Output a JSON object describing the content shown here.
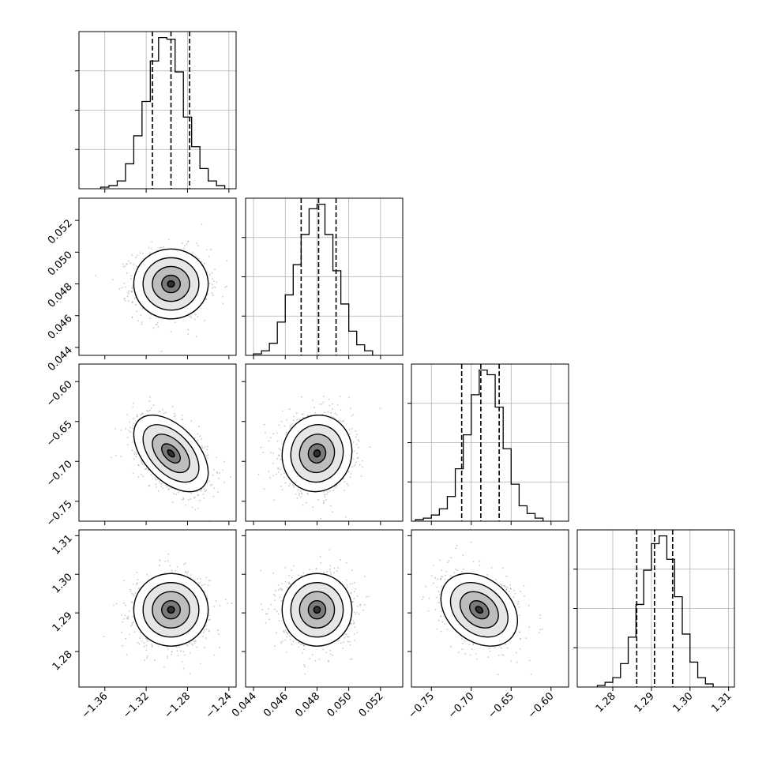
{
  "figure": {
    "colors": {
      "frame": "#000000",
      "grid": "#b0b0b0",
      "scatter": "#9a9a9a",
      "contour": "#000000"
    }
  },
  "chart_data": {
    "type": "corner",
    "grid": true,
    "quantiles": [
      0.16,
      0.5,
      0.84
    ],
    "parameters": [
      {
        "id": "p0",
        "range": [
          -1.385,
          -1.233
        ],
        "ticks": [
          -1.36,
          -1.32,
          -1.28,
          -1.24
        ],
        "tick_labels": [
          "−1.36",
          "−1.32",
          "−1.28",
          "−1.24"
        ],
        "quantile_values": [
          -1.314,
          -1.296,
          -1.278
        ],
        "hist_edges": [
          -1.364,
          -1.356,
          -1.348,
          -1.34,
          -1.332,
          -1.324,
          -1.316,
          -1.308,
          -1.3,
          -1.292,
          -1.284,
          -1.276,
          -1.268,
          -1.26,
          -1.252,
          -1.244
        ],
        "hist_counts": [
          0.01,
          0.02,
          0.05,
          0.16,
          0.34,
          0.56,
          0.82,
          0.97,
          0.96,
          0.75,
          0.46,
          0.27,
          0.13,
          0.05,
          0.02
        ]
      },
      {
        "id": "p1",
        "range": [
          0.0435,
          0.0534
        ],
        "ticks": [
          0.044,
          0.046,
          0.048,
          0.05,
          0.052
        ],
        "tick_labels": [
          "0.044",
          "0.046",
          "0.048",
          "0.050",
          "0.052"
        ],
        "quantile_values": [
          0.047,
          0.0481,
          0.0492
        ],
        "hist_edges": [
          0.044,
          0.0445,
          0.045,
          0.0455,
          0.046,
          0.0465,
          0.047,
          0.0475,
          0.048,
          0.0485,
          0.049,
          0.0495,
          0.05,
          0.0505,
          0.051,
          0.0515
        ],
        "hist_counts": [
          0.01,
          0.03,
          0.08,
          0.22,
          0.4,
          0.6,
          0.8,
          0.97,
          1.0,
          0.8,
          0.56,
          0.34,
          0.16,
          0.07,
          0.03
        ]
      },
      {
        "id": "p2",
        "range": [
          -0.775,
          -0.578
        ],
        "ticks": [
          -0.75,
          -0.7,
          -0.65,
          -0.6
        ],
        "tick_labels": [
          "−0.75",
          "−0.70",
          "−0.65",
          "−0.60"
        ],
        "quantile_values": [
          -0.712,
          -0.688,
          -0.665
        ],
        "hist_edges": [
          -0.77,
          -0.76,
          -0.75,
          -0.74,
          -0.73,
          -0.72,
          -0.71,
          -0.7,
          -0.69,
          -0.68,
          -0.67,
          -0.66,
          -0.65,
          -0.64,
          -0.63,
          -0.62,
          -0.61
        ],
        "hist_counts": [
          0.01,
          0.02,
          0.04,
          0.08,
          0.16,
          0.34,
          0.56,
          0.82,
          0.98,
          0.95,
          0.74,
          0.47,
          0.24,
          0.1,
          0.05,
          0.02
        ]
      },
      {
        "id": "p3",
        "range": [
          1.2708,
          1.3115
        ],
        "ticks": [
          1.28,
          1.29,
          1.3,
          1.31
        ],
        "tick_labels": [
          "1.28",
          "1.29",
          "1.30",
          "1.31"
        ],
        "quantile_values": [
          1.2862,
          1.2908,
          1.2955
        ],
        "hist_edges": [
          1.276,
          1.278,
          1.28,
          1.282,
          1.284,
          1.286,
          1.288,
          1.29,
          1.292,
          1.294,
          1.296,
          1.298,
          1.3,
          1.302,
          1.304,
          1.306
        ],
        "hist_counts": [
          0.01,
          0.03,
          0.06,
          0.15,
          0.32,
          0.53,
          0.75,
          0.92,
          0.97,
          0.82,
          0.58,
          0.34,
          0.16,
          0.06,
          0.02
        ]
      }
    ],
    "pairs": [
      {
        "x": "p0",
        "y": "p1",
        "mean": [
          -1.296,
          0.048
        ],
        "sigma": [
          0.018,
          0.0011
        ],
        "rho": 0.0
      },
      {
        "x": "p0",
        "y": "p2",
        "mean": [
          -1.296,
          -0.69
        ],
        "sigma": [
          0.018,
          0.024
        ],
        "rho": -0.5
      },
      {
        "x": "p1",
        "y": "p2",
        "mean": [
          0.048,
          -0.69
        ],
        "sigma": [
          0.0011,
          0.024
        ],
        "rho": 0.05
      },
      {
        "x": "p0",
        "y": "p3",
        "mean": [
          -1.296,
          1.2908
        ],
        "sigma": [
          0.018,
          0.0047
        ],
        "rho": 0.0
      },
      {
        "x": "p1",
        "y": "p3",
        "mean": [
          0.048,
          1.2908
        ],
        "sigma": [
          0.0011,
          0.0047
        ],
        "rho": 0.0
      },
      {
        "x": "p2",
        "y": "p3",
        "mean": [
          -0.69,
          1.2908
        ],
        "sigma": [
          0.024,
          0.0047
        ],
        "rho": -0.3
      }
    ]
  }
}
